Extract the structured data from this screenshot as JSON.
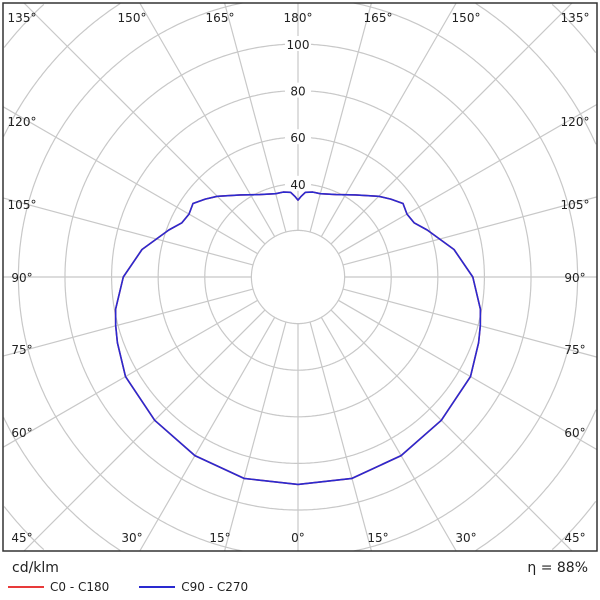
{
  "chart_data": {
    "type": "polar",
    "unit_label": "cd/klm",
    "efficiency_label": "η = 88%",
    "radial_ticks": [
      40,
      60,
      80,
      100
    ],
    "radial_grid_step": 20,
    "angle_labels_top": [
      "135°",
      "150°",
      "165°",
      "180°",
      "165°",
      "150°",
      "135°"
    ],
    "angle_labels_left": [
      "120°",
      "105°",
      "90°",
      "75°",
      "60°"
    ],
    "angle_labels_right": [
      "120°",
      "105°",
      "90°",
      "75°",
      "60°"
    ],
    "angle_labels_bottom": [
      "45°",
      "30°",
      "15°",
      "0°",
      "15°",
      "30°",
      "45°"
    ],
    "gamma": [
      0,
      15,
      30,
      45,
      60,
      70,
      75,
      80,
      90,
      100,
      110,
      115,
      120,
      125,
      130,
      135,
      145,
      155,
      165,
      170,
      175,
      178,
      180
    ],
    "series": [
      {
        "name": "C0 - C180",
        "color": "#e83a3a",
        "values": [
          89,
          89.5,
          88.5,
          87,
          85.5,
          82.5,
          81,
          79.5,
          75,
          68,
          59,
          55,
          54,
          55,
          52,
          49,
          43,
          39,
          37,
          37,
          36.5,
          34.5,
          33
        ]
      },
      {
        "name": "C90 - C270",
        "color": "#2a2ad0",
        "values": [
          89,
          89.5,
          88.5,
          87,
          85.5,
          82.5,
          81,
          79.5,
          75,
          68,
          59,
          55,
          54,
          55,
          52,
          49,
          43,
          39,
          37,
          37,
          36.5,
          34.5,
          33
        ]
      }
    ],
    "grid": true,
    "legend_placement": "bottom-left"
  }
}
